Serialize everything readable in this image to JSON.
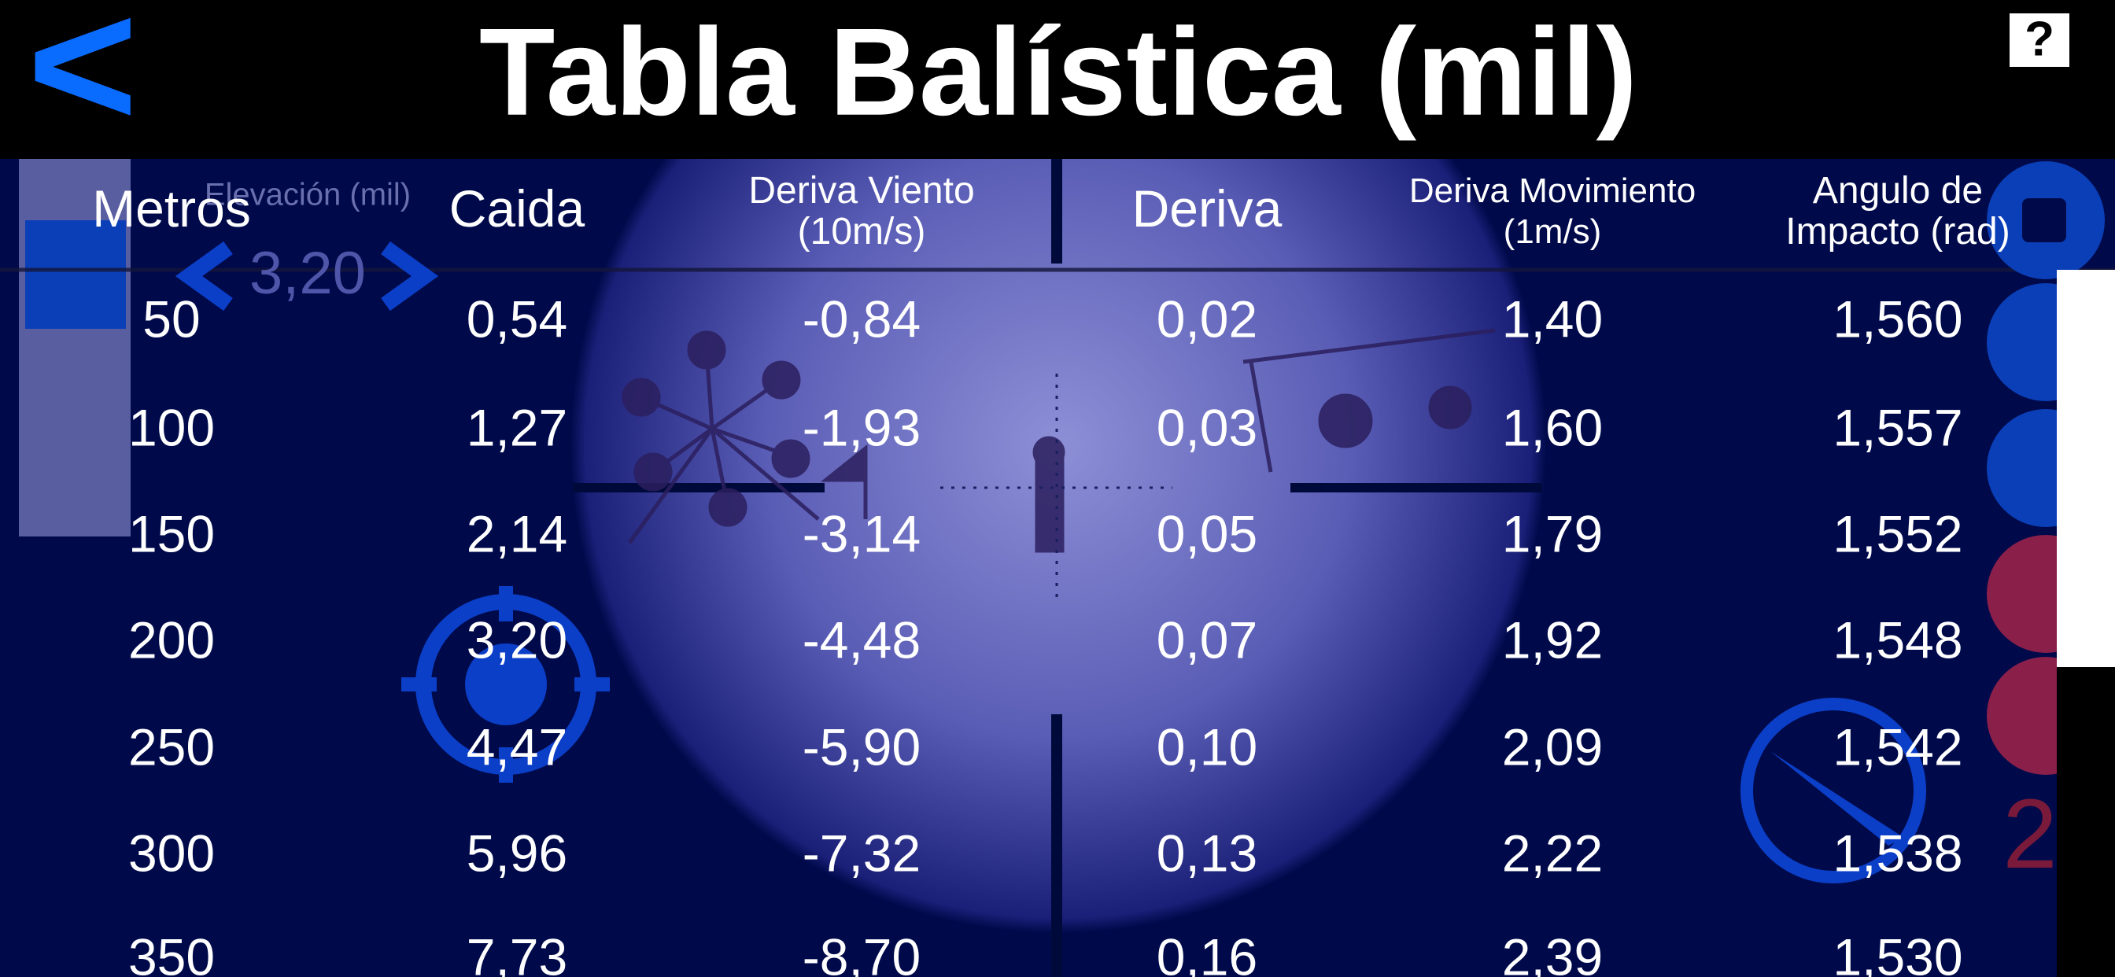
{
  "header": {
    "back": "<",
    "title": "Tabla Balística (mil)",
    "help": "?"
  },
  "overlay": {
    "elevation_label": "Elevación (mil)",
    "elevation_value": "3,20",
    "counter": "2"
  },
  "table": {
    "columns": [
      [
        "Metros"
      ],
      [
        "Caida"
      ],
      [
        "Deriva Viento",
        "(10m/s)"
      ],
      [
        "Deriva"
      ],
      [
        "Deriva Movimiento",
        "(1m/s)"
      ],
      [
        "Angulo de",
        "Impacto (rad)"
      ]
    ],
    "rows": [
      [
        "50",
        "0,54",
        "-0,84",
        "0,02",
        "1,40",
        "1,560"
      ],
      [
        "100",
        "1,27",
        "-1,93",
        "0,03",
        "1,60",
        "1,557"
      ],
      [
        "150",
        "2,14",
        "-3,14",
        "0,05",
        "1,79",
        "1,552"
      ],
      [
        "200",
        "3,20",
        "-4,48",
        "0,07",
        "1,92",
        "1,548"
      ],
      [
        "250",
        "4,47",
        "-5,90",
        "0,10",
        "2,09",
        "1,542"
      ],
      [
        "300",
        "5,96",
        "-7,32",
        "0,13",
        "2,22",
        "1,538"
      ],
      [
        "350",
        "7,73",
        "-8,70",
        "0,16",
        "2,39",
        "1,530"
      ]
    ]
  }
}
